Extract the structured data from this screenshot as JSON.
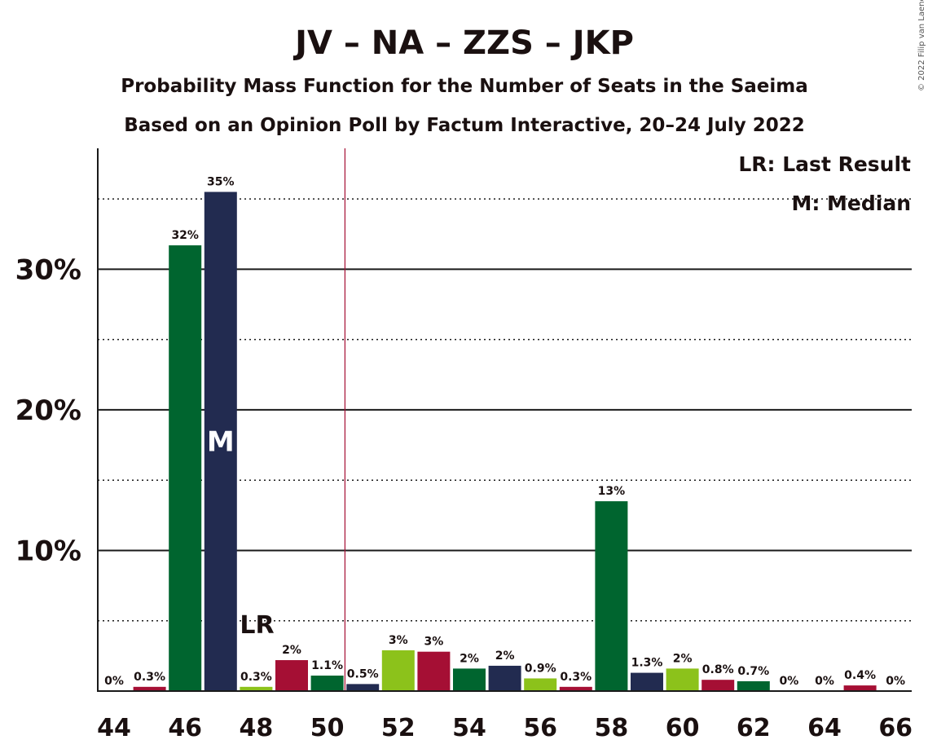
{
  "chart_data": {
    "type": "bar",
    "title": "JV – NA – ZZS – JKP",
    "subtitle_1": "Probability Mass Function for the Number of Seats in the Saeima",
    "subtitle_2": "Based on an Opinion Poll by Factum Interactive, 20–24 July 2022",
    "copyright": "© 2022 Filip van Laenen",
    "x": [
      44,
      45,
      46,
      47,
      48,
      49,
      50,
      51,
      52,
      53,
      54,
      55,
      56,
      57,
      58,
      59,
      60,
      61,
      62,
      63,
      64,
      65,
      66
    ],
    "values": [
      0,
      0.3,
      31.7,
      35.5,
      0.3,
      2.2,
      1.1,
      0.5,
      2.9,
      2.8,
      1.6,
      1.8,
      0.9,
      0.3,
      13.5,
      1.3,
      1.6,
      0.8,
      0.7,
      0,
      0,
      0.4,
      0
    ],
    "data_labels": [
      "0%",
      "0.3%",
      "32%",
      "35%",
      "0.3%",
      "2%",
      "1.1%",
      "0.5%",
      "3%",
      "3%",
      "2%",
      "2%",
      "0.9%",
      "0.3%",
      "13%",
      "1.3%",
      "2%",
      "0.8%",
      "0.7%",
      "0%",
      "0%",
      "0.4%",
      "0%"
    ],
    "bar_colors": [
      "#00652f",
      "#a50f34",
      "#00652f",
      "#222b50",
      "#8cc21b",
      "#a50f34",
      "#00652f",
      "#222b50",
      "#8cc21b",
      "#a50f34",
      "#00652f",
      "#222b50",
      "#8cc21b",
      "#a50f34",
      "#00652f",
      "#222b50",
      "#8cc21b",
      "#a50f34",
      "#00652f",
      "#222b50",
      "#8cc21b",
      "#a50f34",
      "#00652f"
    ],
    "x_ticks": [
      "44",
      "46",
      "48",
      "50",
      "52",
      "54",
      "56",
      "58",
      "60",
      "62",
      "64",
      "66"
    ],
    "y_ticks": [
      "10%",
      "20%",
      "30%"
    ],
    "y_tick_values": [
      10,
      20,
      30
    ],
    "ylim": [
      0,
      38.6
    ],
    "grid_major": [
      10,
      20,
      30
    ],
    "grid_minor": [
      5,
      15,
      25,
      35
    ],
    "majority_line_x": 50.5,
    "median_seat": 47,
    "median_marker": "M",
    "last_result_seat": 48,
    "last_result_marker": "LR",
    "legend": [
      "LR: Last Result",
      "M: Median"
    ],
    "legend_position": "top-right"
  }
}
